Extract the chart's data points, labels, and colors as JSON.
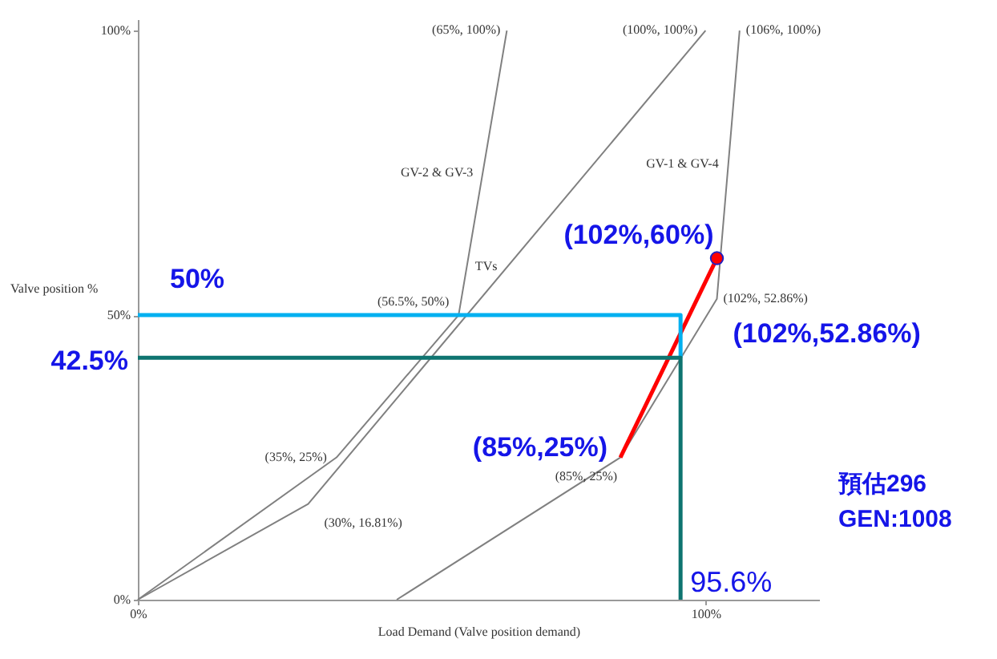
{
  "chart_data": {
    "type": "line",
    "xlabel": "Load Demand (Valve position demand)",
    "ylabel": "Valve position %",
    "xlim": [
      0,
      120
    ],
    "ylim": [
      0,
      102
    ],
    "xticks": [
      {
        "value": 0,
        "label": "0%"
      },
      {
        "value": 100,
        "label": "100%"
      }
    ],
    "yticks": [
      {
        "value": 0,
        "label": "0%"
      },
      {
        "value": 50,
        "label": "50%"
      },
      {
        "value": 100,
        "label": "100%"
      }
    ],
    "series": [
      {
        "name": "GV-2 & GV-3",
        "color": "#808080",
        "x": [
          0,
          35,
          56.5,
          65
        ],
        "values": [
          0,
          25,
          50,
          100
        ]
      },
      {
        "name": "TVs",
        "color": "#808080",
        "x": [
          0,
          30,
          100
        ],
        "values": [
          0,
          16.81,
          100
        ]
      },
      {
        "name": "GV-1 & GV-4",
        "color": "#808080",
        "x": [
          45.6,
          85,
          102,
          106
        ],
        "values": [
          0,
          25,
          52.86,
          100
        ]
      },
      {
        "color": "#ff0000",
        "x": [
          85,
          102
        ],
        "values": [
          25,
          60
        ]
      },
      {
        "color": "#00b0f0",
        "x": [
          0,
          95.6,
          95.6
        ],
        "values": [
          50,
          50,
          42.5
        ]
      },
      {
        "color": "#0e7470",
        "x": [
          0,
          95.6,
          95.6
        ],
        "values": [
          42.5,
          42.5,
          0
        ]
      },
      {
        "type": "scatter",
        "color": "#ff0000",
        "x": [
          102
        ],
        "values": [
          60
        ]
      }
    ],
    "annotations": [
      {
        "text": "(65%, 100%)",
        "x": 65,
        "y": 100
      },
      {
        "text": "(100%, 100%)",
        "x": 100,
        "y": 100
      },
      {
        "text": "(106%, 100%)",
        "x": 106,
        "y": 100
      },
      {
        "text": "(56.5%, 50%)",
        "x": 56.5,
        "y": 50
      },
      {
        "text": "(35%, 25%)",
        "x": 35,
        "y": 25
      },
      {
        "text": "(30%, 16.81%)",
        "x": 30,
        "y": 16.81
      },
      {
        "text": "(85%, 25%)",
        "x": 85,
        "y": 25
      },
      {
        "text": "(102%, 52.86%)",
        "x": 102,
        "y": 52.86
      },
      {
        "text": "(102%,60%)",
        "x": 102,
        "y": 60
      },
      {
        "text": "(102%,52.86%)",
        "x": 102,
        "y": 52.86
      },
      {
        "text": "(85%,25%)",
        "x": 85,
        "y": 25
      },
      {
        "text": "50%",
        "y": 50
      },
      "42.5%",
      {
        "text": "95.6%",
        "x": 95.6,
        "y": 0
      },
      "預估296",
      "GEN:1008"
    ]
  }
}
